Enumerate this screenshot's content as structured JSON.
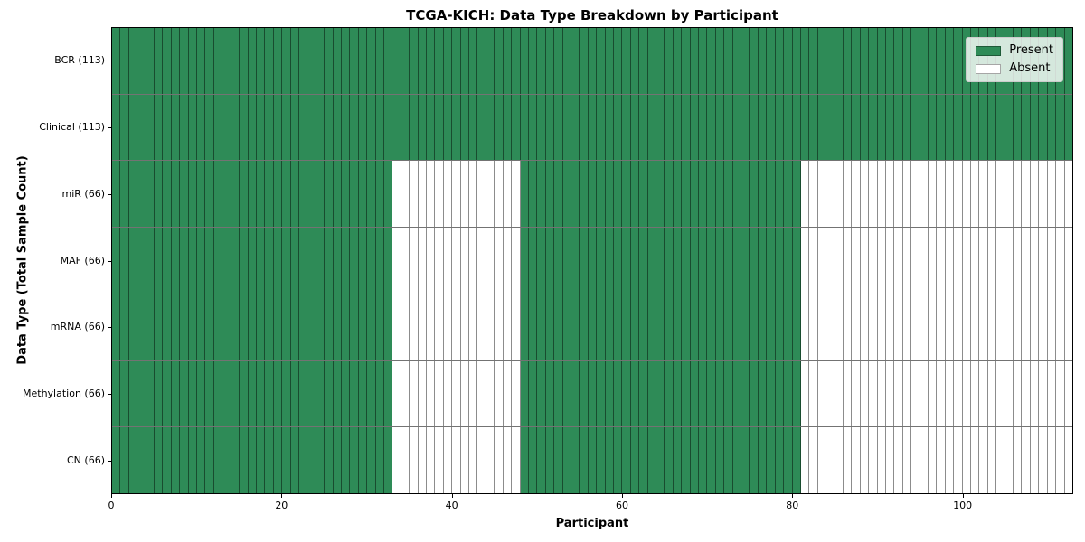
{
  "chart_data": {
    "type": "heatmap",
    "title": "TCGA-KICH: Data Type Breakdown by Participant",
    "xlabel": "Participant",
    "ylabel": "Data Type (Total Sample Count)",
    "x_ticks": [
      0,
      20,
      40,
      60,
      80,
      100
    ],
    "x_range": [
      0,
      113
    ],
    "n_participants": 113,
    "grid": true,
    "legend_position": "upper right",
    "colors": {
      "present": "#2e8b57",
      "absent": "#ffffff"
    },
    "legend": [
      {
        "label": "Present",
        "color": "#2e8b57"
      },
      {
        "label": "Absent",
        "color": "#ffffff"
      }
    ],
    "rows": [
      {
        "label": "BCR (113)",
        "data_type": "BCR",
        "total_samples": 113,
        "present_segments": [
          [
            0,
            113
          ]
        ]
      },
      {
        "label": "Clinical (113)",
        "data_type": "Clinical",
        "total_samples": 113,
        "present_segments": [
          [
            0,
            113
          ]
        ]
      },
      {
        "label": "miR (66)",
        "data_type": "miR",
        "total_samples": 66,
        "present_segments": [
          [
            0,
            33
          ],
          [
            48,
            81
          ]
        ]
      },
      {
        "label": "MAF (66)",
        "data_type": "MAF",
        "total_samples": 66,
        "present_segments": [
          [
            0,
            33
          ],
          [
            48,
            81
          ]
        ]
      },
      {
        "label": "mRNA (66)",
        "data_type": "mRNA",
        "total_samples": 66,
        "present_segments": [
          [
            0,
            33
          ],
          [
            48,
            81
          ]
        ]
      },
      {
        "label": "Methylation (66)",
        "data_type": "Methylation",
        "total_samples": 66,
        "present_segments": [
          [
            0,
            33
          ],
          [
            48,
            81
          ]
        ]
      },
      {
        "label": "CN (66)",
        "data_type": "CN",
        "total_samples": 66,
        "present_segments": [
          [
            0,
            33
          ],
          [
            48,
            81
          ]
        ]
      }
    ]
  }
}
